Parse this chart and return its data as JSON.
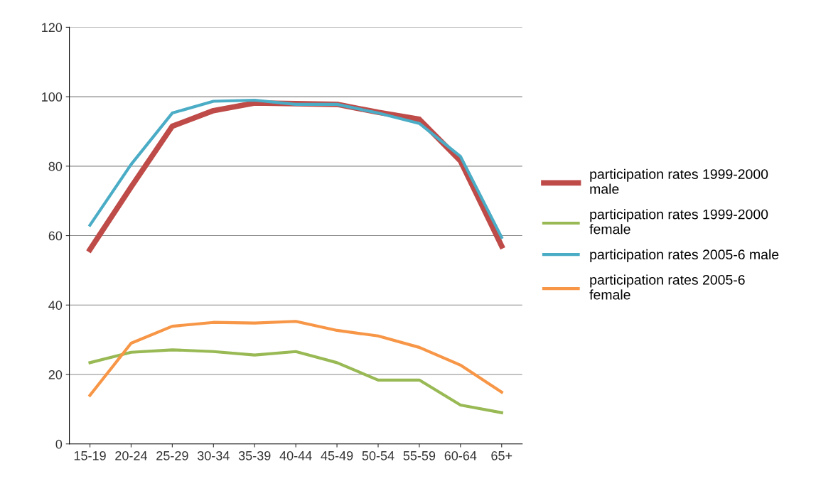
{
  "chart_data": {
    "type": "line",
    "categories": [
      "15-19",
      "20-24",
      "25-29",
      "30-34",
      "35-39",
      "40-44",
      "45-49",
      "50-54",
      "55-59",
      "60-64",
      "65+"
    ],
    "series": [
      {
        "name": "participation rates 1999-2000 male",
        "color": "#be4b48",
        "values": [
          56,
          74,
          91.5,
          96,
          98.2,
          98,
          97.8,
          95.5,
          93.5,
          81.5,
          57
        ]
      },
      {
        "name": "participation rates 1999-2000 female",
        "color": "#98b954",
        "values": [
          23.4,
          26.4,
          27.1,
          26.6,
          25.6,
          26.6,
          23.4,
          18.4,
          18.4,
          11.2,
          9
        ]
      },
      {
        "name": "participation rates 2005-6 male",
        "color": "#4bacc6",
        "values": [
          63,
          80.5,
          95.3,
          98.7,
          99,
          97.8,
          97.8,
          95.3,
          92.3,
          82.8,
          59.5
        ]
      },
      {
        "name": "participation rates 2005-6 female",
        "color": "#f79646",
        "values": [
          14,
          29,
          33.9,
          35,
          34.8,
          35.3,
          32.7,
          31.1,
          27.8,
          22.7,
          14.9
        ]
      }
    ],
    "ylim": [
      0,
      120
    ],
    "yticks": [
      0,
      20,
      40,
      60,
      80,
      100,
      120
    ],
    "grid": "y",
    "legend": "right",
    "marker": "none",
    "line_style": "solid"
  }
}
